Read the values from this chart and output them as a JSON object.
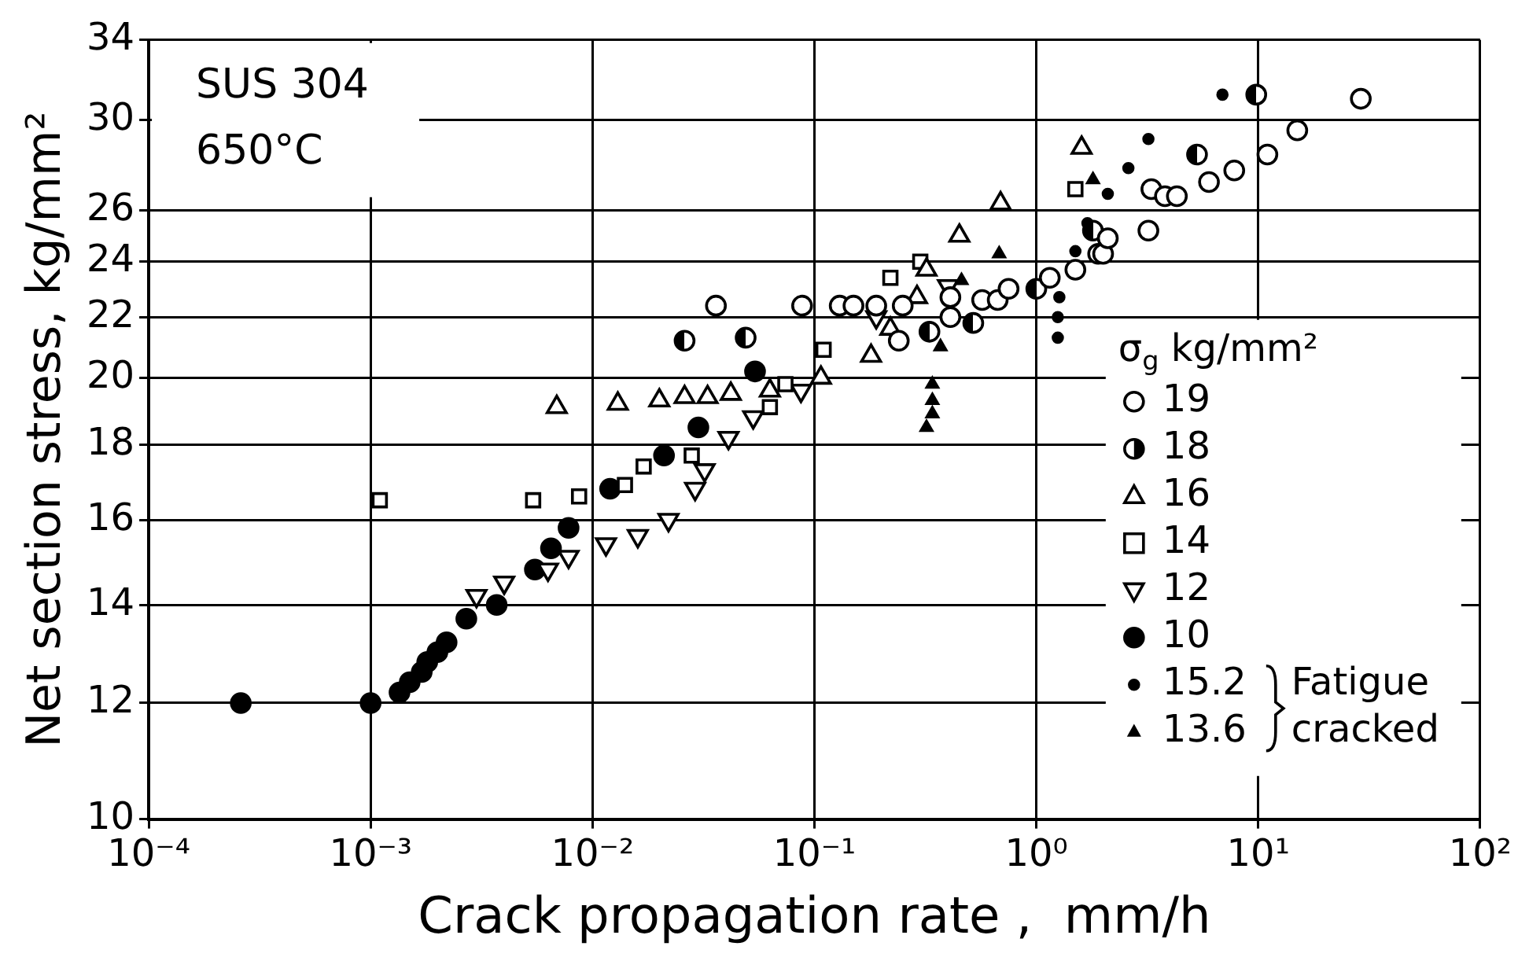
{
  "chart_data": {
    "type": "scatter",
    "xlabel": "Crack propagation rate ,  mm/h",
    "ylabel": "Net section stress, kg/mm²",
    "legend_title": "σ$_{g}$ kg/mm²",
    "legend": "right",
    "grid": true,
    "log": "xy",
    "xlim": [
      0.0001,
      100
    ],
    "ylim": [
      10,
      34
    ],
    "xticks": [
      {
        "value": 0.0001,
        "label": "10⁻⁴"
      },
      {
        "value": 0.001,
        "label": "10⁻³"
      },
      {
        "value": 0.01,
        "label": "10⁻²"
      },
      {
        "value": 0.1,
        "label": "10⁻¹"
      },
      {
        "value": 1,
        "label": "10⁰"
      },
      {
        "value": 10,
        "label": "10¹"
      },
      {
        "value": 100,
        "label": "10²"
      }
    ],
    "yticks": [
      10,
      12,
      14,
      16,
      18,
      20,
      22,
      24,
      26,
      30,
      34
    ],
    "annotations": [
      "SUS 304",
      "650°C",
      "Fatigue cracked"
    ],
    "series": [
      {
        "name": "19",
        "color": "#000000",
        "marker": "circle",
        "x": [
          0.036,
          0.088,
          0.13,
          0.15,
          0.19,
          0.25,
          0.41,
          0.57,
          0.67,
          0.75,
          0.24,
          0.41,
          1.15,
          1.5,
          1.9,
          2.0,
          2.1,
          3.2,
          3.3,
          3.8,
          4.3,
          6.0,
          7.8,
          11,
          15,
          29
        ],
        "values": [
          22.4,
          22.4,
          22.4,
          22.4,
          22.4,
          22.4,
          22.7,
          22.6,
          22.6,
          23.0,
          21.2,
          22.0,
          23.4,
          23.7,
          24.3,
          24.3,
          24.9,
          25.2,
          26.9,
          26.6,
          26.6,
          27.2,
          27.7,
          28.4,
          29.5,
          31.0
        ]
      },
      {
        "name": "18",
        "color": "#000000",
        "marker": "half-circle",
        "x": [
          0.026,
          0.049,
          0.33,
          0.52,
          1.0,
          1.8,
          5.3,
          9.8
        ],
        "values": [
          21.2,
          21.3,
          21.5,
          21.8,
          23.0,
          25.2,
          28.4,
          31.2
        ]
      },
      {
        "name": "16",
        "color": "#000000",
        "marker": "triangle",
        "x": [
          0.0069,
          0.013,
          0.02,
          0.026,
          0.033,
          0.042,
          0.063,
          0.107,
          0.18,
          0.22,
          0.29,
          0.32,
          0.45,
          0.69,
          1.6
        ],
        "values": [
          19.1,
          19.2,
          19.3,
          19.4,
          19.4,
          19.5,
          19.6,
          20.0,
          20.7,
          21.6,
          22.7,
          23.7,
          25.0,
          26.3,
          28.7
        ]
      },
      {
        "name": "14",
        "color": "#000000",
        "marker": "square",
        "x": [
          0.0011,
          0.0054,
          0.0087,
          0.014,
          0.017,
          0.028,
          0.063,
          0.074,
          0.11,
          0.22,
          0.3,
          1.5
        ],
        "values": [
          16.5,
          16.5,
          16.6,
          16.9,
          17.4,
          17.7,
          19.1,
          19.8,
          20.9,
          23.4,
          24.0,
          26.9
        ]
      },
      {
        "name": "12",
        "color": "#000000",
        "marker": "triangle-down",
        "x": [
          0.003,
          0.004,
          0.0063,
          0.0078,
          0.0115,
          0.016,
          0.022,
          0.029,
          0.032,
          0.041,
          0.053,
          0.087,
          0.19,
          0.4
        ],
        "values": [
          14.2,
          14.5,
          14.8,
          15.1,
          15.4,
          15.6,
          16.0,
          16.8,
          17.3,
          18.2,
          18.8,
          19.6,
          22.0,
          23.1
        ]
      },
      {
        "name": "10",
        "color": "#000000",
        "marker": "circle",
        "x": [
          0.00026,
          0.001,
          0.00135,
          0.0015,
          0.0017,
          0.0018,
          0.002,
          0.0022,
          0.0027,
          0.0037,
          0.0055,
          0.0065,
          0.0078,
          0.012,
          0.021,
          0.03,
          0.054
        ],
        "values": [
          12,
          12,
          12.2,
          12.4,
          12.6,
          12.8,
          13.0,
          13.2,
          13.7,
          14.0,
          14.8,
          15.3,
          15.8,
          16.8,
          17.7,
          18.5,
          20.2
        ]
      },
      {
        "name": "15.2",
        "color": "#000000",
        "marker": "circle",
        "x": [
          6.9,
          3.2,
          2.6,
          2.1,
          1.7,
          1.27,
          1.25,
          1.25,
          1.5
        ],
        "values": [
          31.2,
          29.1,
          27.8,
          26.7,
          25.5,
          22.7,
          22.0,
          21.3,
          24.4
        ]
      },
      {
        "name": "13.6",
        "color": "#000000",
        "marker": "triangle",
        "x": [
          0.34,
          0.34,
          0.34,
          0.32,
          0.37,
          0.46,
          0.68,
          1.8
        ],
        "values": [
          19.8,
          19.3,
          18.9,
          18.5,
          21.0,
          23.3,
          24.3,
          27.3
        ]
      }
    ]
  }
}
